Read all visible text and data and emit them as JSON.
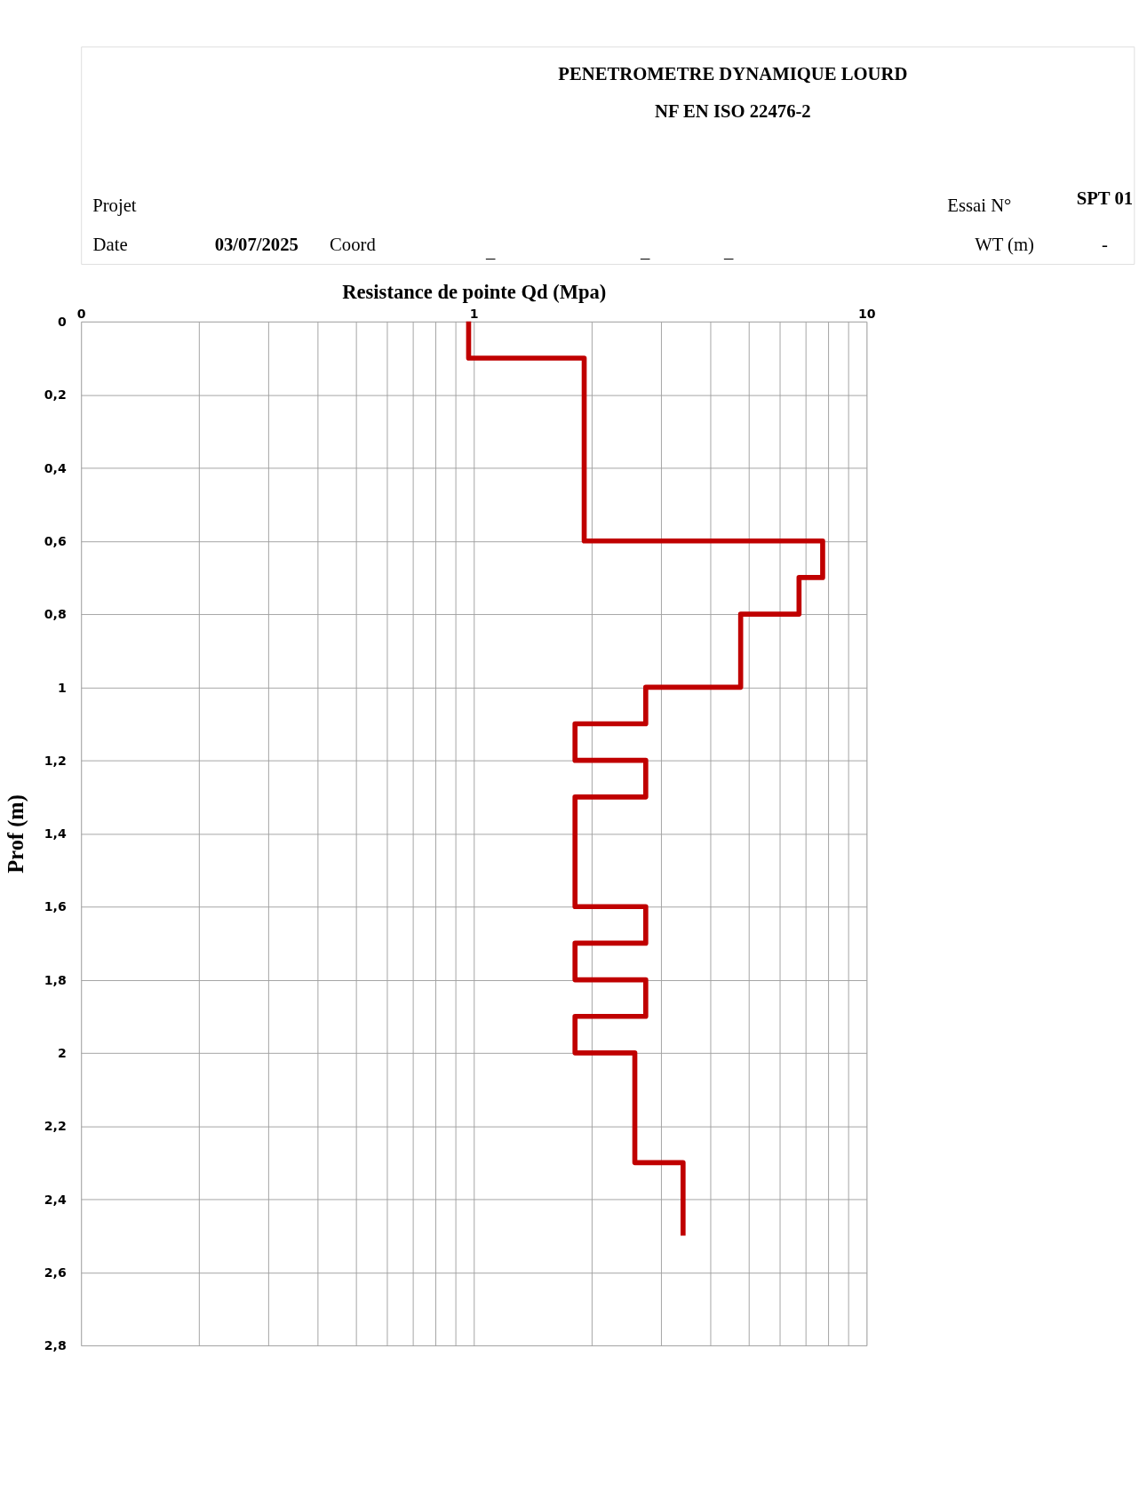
{
  "chart_data": {
    "type": "line",
    "title": "PENETROMETRE DYNAMIQUE LOURD",
    "subtitle": "NF EN ISO 22476-2",
    "annotations": [
      "Projet",
      "Essai N°",
      "SPT 01",
      "Date",
      "03/07/2025",
      "Coord",
      "_",
      "_",
      "_",
      "WT (m)",
      "-"
    ],
    "xlabel": "Resistance de pointe Qd (Mpa)",
    "ylabel": "Prof (m)",
    "log": "x",
    "xlim": [
      0.1,
      10
    ],
    "xticks": [
      {
        "value": 0.1,
        "label": "0"
      },
      {
        "value": 0.2,
        "label": null
      },
      {
        "value": 0.3,
        "label": null
      },
      {
        "value": 0.4,
        "label": null
      },
      {
        "value": 0.5,
        "label": null
      },
      {
        "value": 0.6,
        "label": null
      },
      {
        "value": 0.7,
        "label": null
      },
      {
        "value": 0.8,
        "label": null
      },
      {
        "value": 0.9,
        "label": null
      },
      1,
      {
        "value": 2,
        "label": null
      },
      {
        "value": 3,
        "label": null
      },
      {
        "value": 4,
        "label": null
      },
      {
        "value": 5,
        "label": null
      },
      {
        "value": 6,
        "label": null
      },
      {
        "value": 7,
        "label": null
      },
      {
        "value": 8,
        "label": null
      },
      {
        "value": 9,
        "label": null
      },
      10
    ],
    "ylim": [
      2.8,
      0
    ],
    "yticks": [
      0,
      {
        "value": 0.2,
        "label": "0,2"
      },
      {
        "value": 0.4,
        "label": "0,4"
      },
      {
        "value": 0.6,
        "label": "0,6"
      },
      {
        "value": 0.8,
        "label": "0,8"
      },
      1,
      {
        "value": 1.2,
        "label": "1,2"
      },
      {
        "value": 1.4,
        "label": "1,4"
      },
      {
        "value": 1.6,
        "label": "1,6"
      },
      {
        "value": 1.8,
        "label": "1,8"
      },
      2,
      {
        "value": 2.2,
        "label": "2,2"
      },
      {
        "value": 2.4,
        "label": "2,4"
      },
      {
        "value": 2.6,
        "label": "2,6"
      },
      {
        "value": 2.8,
        "label": "2,8"
      }
    ],
    "grid": true,
    "series": [
      {
        "color": "#c00000",
        "x": [
          0.97,
          0.97,
          1.91,
          1.91,
          7.73,
          7.73,
          6.73,
          6.73,
          4.78,
          4.78,
          2.74,
          2.74,
          1.81,
          1.81,
          2.74,
          2.74,
          1.81,
          1.81,
          2.74,
          2.74,
          1.81,
          1.81,
          2.74,
          2.74,
          1.81,
          1.81,
          2.57,
          2.57,
          3.41,
          3.41
        ],
        "values": [
          0,
          0.1,
          0.1,
          0.6,
          0.6,
          0.7,
          0.7,
          0.8,
          0.8,
          1.0,
          1.0,
          1.1,
          1.1,
          1.2,
          1.2,
          1.3,
          1.3,
          1.6,
          1.6,
          1.7,
          1.7,
          1.8,
          1.8,
          1.9,
          1.9,
          2.0,
          2.0,
          2.3,
          2.3,
          2.5
        ]
      }
    ]
  }
}
